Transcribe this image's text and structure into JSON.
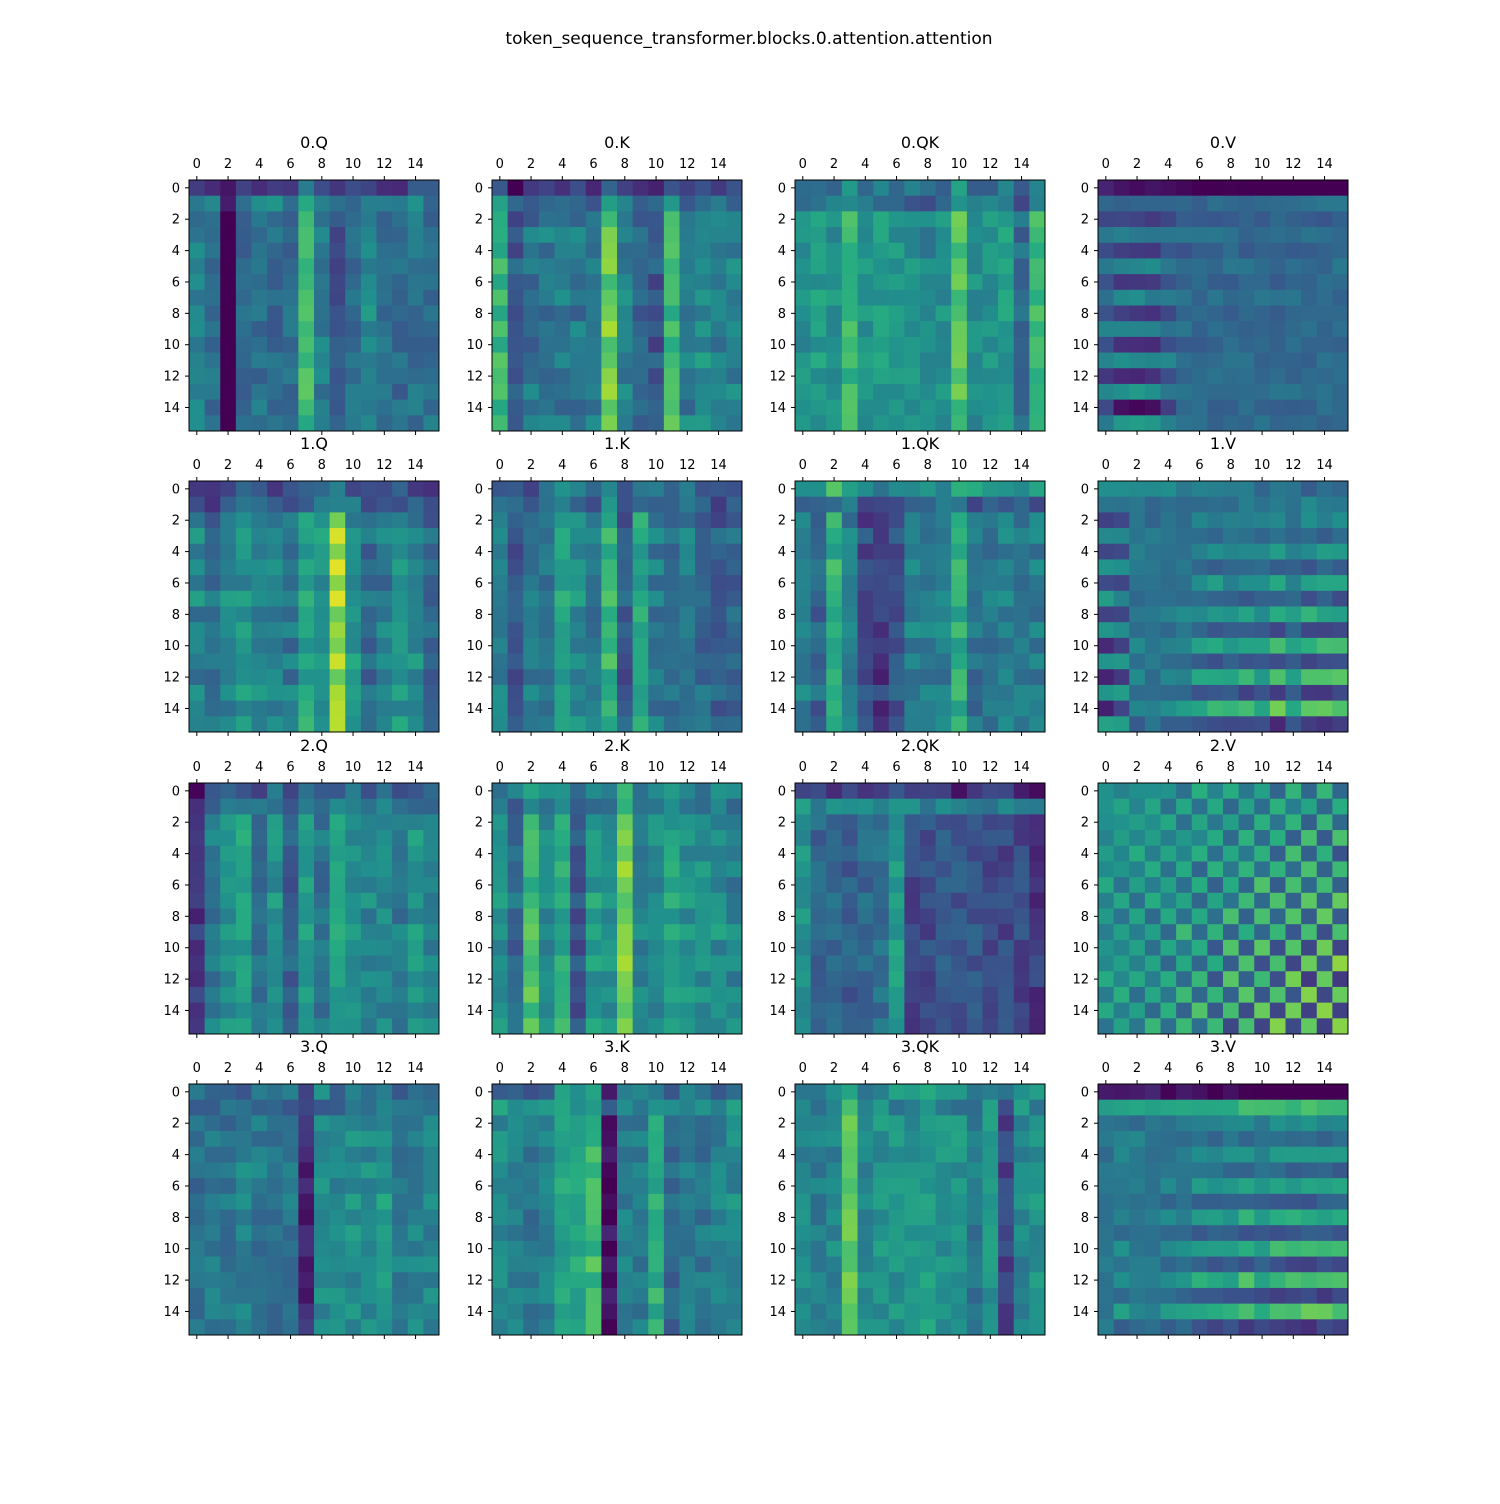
{
  "figure": {
    "title": "token_sequence_transformer.blocks.0.attention.attention"
  },
  "chart_data": {
    "type": "heatmap",
    "colormap": "viridis",
    "grid": false,
    "rows": 4,
    "cols": 4,
    "matrix_size": 16,
    "tick_labels": [
      "0",
      "2",
      "4",
      "6",
      "8",
      "10",
      "12",
      "14"
    ],
    "tick_values": [
      0,
      2,
      4,
      6,
      8,
      10,
      12,
      14
    ],
    "x_axis_position": "top",
    "panels": [
      {
        "title": "0.Q",
        "pattern": "cols",
        "seed": 11,
        "rowp": [
          0.05,
          0.4,
          0.1,
          0.1,
          0.5
        ],
        "colp": [
          0.5,
          0.45,
          0.0,
          0.4,
          0.45,
          0.42,
          0.42,
          0.75,
          0.5,
          0.35,
          0.45,
          0.55,
          0.45,
          0.42,
          0.45,
          0.45
        ]
      },
      {
        "title": "0.K",
        "pattern": "cols",
        "seed": 12,
        "rowp": [
          0.0,
          0.3,
          0.2,
          0.45,
          0.15
        ],
        "colp": [
          0.7,
          0.3,
          0.4,
          0.42,
          0.42,
          0.42,
          0.4,
          0.8,
          0.45,
          0.35,
          0.3,
          0.72,
          0.45,
          0.5,
          0.45,
          0.45
        ]
      },
      {
        "title": "0.QK",
        "pattern": "cols",
        "seed": 13,
        "rowp": [
          0.2,
          0.15,
          0.0,
          0.0,
          0.3
        ],
        "colp": [
          0.6,
          0.65,
          0.6,
          0.78,
          0.62,
          0.65,
          0.62,
          0.6,
          0.55,
          0.6,
          0.82,
          0.6,
          0.6,
          0.65,
          0.45,
          0.8
        ]
      },
      {
        "title": "0.V",
        "pattern": "rows",
        "seed": 14,
        "rowp": [
          0.1,
          0.3,
          0.3,
          0.45,
          0.25
        ],
        "colp": [
          0.35,
          0.3,
          0.28,
          0.3,
          0.35,
          0.4,
          0.42,
          0.42,
          0.42,
          0.42,
          0.42,
          0.42,
          0.42,
          0.42,
          0.42,
          0.42
        ]
      },
      {
        "title": "1.Q",
        "pattern": "cols",
        "seed": 21,
        "rowp": [
          0.1,
          0.2,
          0.3,
          0.6,
          0.3
        ],
        "colp": [
          0.45,
          0.35,
          0.45,
          0.5,
          0.45,
          0.45,
          0.4,
          0.6,
          0.5,
          0.85,
          0.5,
          0.35,
          0.4,
          0.5,
          0.45,
          0.3
        ]
      },
      {
        "title": "1.K",
        "pattern": "cols",
        "seed": 22,
        "rowp": [
          0.25,
          0.25,
          0.3,
          0.45,
          0.3
        ],
        "colp": [
          0.45,
          0.3,
          0.42,
          0.38,
          0.6,
          0.5,
          0.4,
          0.65,
          0.3,
          0.62,
          0.42,
          0.35,
          0.42,
          0.35,
          0.3,
          0.35
        ]
      },
      {
        "title": "1.QK",
        "pattern": "cols",
        "seed": 23,
        "rowp": [
          0.6,
          0.25,
          0.25,
          0.4,
          0.35
        ],
        "colp": [
          0.45,
          0.35,
          0.65,
          0.45,
          0.25,
          0.2,
          0.3,
          0.45,
          0.42,
          0.45,
          0.65,
          0.4,
          0.42,
          0.45,
          0.45,
          0.45
        ]
      },
      {
        "title": "1.V",
        "pattern": "rows",
        "seed": 24,
        "rowp": [
          0.5,
          0.35,
          0.3,
          0.6,
          0.35
        ],
        "colp": [
          0.3,
          0.35,
          0.5,
          0.45,
          0.48,
          0.5,
          0.55,
          0.58,
          0.55,
          0.6,
          0.55,
          0.62,
          0.55,
          0.62,
          0.62,
          0.62
        ]
      },
      {
        "title": "2.Q",
        "pattern": "cols",
        "seed": 31,
        "rowp": [
          0.1,
          0.3,
          0.2,
          0.3,
          0.3
        ],
        "colp": [
          0.2,
          0.45,
          0.55,
          0.6,
          0.42,
          0.55,
          0.35,
          0.58,
          0.42,
          0.6,
          0.52,
          0.5,
          0.5,
          0.45,
          0.55,
          0.5
        ]
      },
      {
        "title": "2.K",
        "pattern": "cols",
        "seed": 32,
        "rowp": [
          0.4,
          0.3,
          0.3,
          0.5,
          0.2
        ],
        "colp": [
          0.5,
          0.35,
          0.7,
          0.5,
          0.6,
          0.28,
          0.55,
          0.5,
          0.78,
          0.45,
          0.5,
          0.6,
          0.5,
          0.5,
          0.5,
          0.45
        ]
      },
      {
        "title": "2.QK",
        "pattern": "cols",
        "seed": 33,
        "rowp": [
          0.0,
          0.6,
          0.1,
          0.1,
          0.35
        ],
        "colp": [
          0.6,
          0.4,
          0.42,
          0.38,
          0.42,
          0.45,
          0.62,
          0.3,
          0.32,
          0.35,
          0.35,
          0.35,
          0.32,
          0.3,
          0.3,
          0.25
        ]
      },
      {
        "title": "2.V",
        "pattern": "check",
        "seed": 34,
        "rowp": [
          0.0,
          0.3,
          0.6,
          0.5,
          0.3
        ],
        "colp": [
          0.45,
          0.42,
          0.5,
          0.5,
          0.5,
          0.55,
          0.55,
          0.6,
          0.55,
          0.6,
          0.55,
          0.62,
          0.55,
          0.6,
          0.55,
          0.55
        ]
      },
      {
        "title": "3.Q",
        "pattern": "cols",
        "seed": 41,
        "rowp": [
          0.3,
          0.25,
          0.3,
          0.4,
          0.3
        ],
        "colp": [
          0.4,
          0.42,
          0.4,
          0.45,
          0.42,
          0.38,
          0.4,
          0.12,
          0.5,
          0.48,
          0.5,
          0.5,
          0.55,
          0.42,
          0.45,
          0.45
        ]
      },
      {
        "title": "3.K",
        "pattern": "cols",
        "seed": 42,
        "rowp": [
          0.3,
          0.5,
          0.3,
          0.35,
          0.3
        ],
        "colp": [
          0.5,
          0.45,
          0.42,
          0.45,
          0.6,
          0.62,
          0.7,
          0.05,
          0.45,
          0.42,
          0.65,
          0.35,
          0.42,
          0.42,
          0.45,
          0.5
        ]
      },
      {
        "title": "3.QK",
        "pattern": "cols",
        "seed": 43,
        "rowp": [
          0.5,
          0.45,
          0.45,
          0.45,
          0.5
        ],
        "colp": [
          0.45,
          0.42,
          0.45,
          0.75,
          0.45,
          0.5,
          0.5,
          0.5,
          0.55,
          0.5,
          0.5,
          0.4,
          0.5,
          0.2,
          0.45,
          0.5
        ]
      },
      {
        "title": "3.V",
        "pattern": "rows",
        "seed": 44,
        "rowp": [
          0.1,
          0.6,
          0.35,
          0.6,
          0.35
        ],
        "colp": [
          0.45,
          0.5,
          0.45,
          0.45,
          0.5,
          0.5,
          0.55,
          0.55,
          0.55,
          0.6,
          0.55,
          0.6,
          0.6,
          0.6,
          0.6,
          0.6
        ]
      }
    ]
  }
}
